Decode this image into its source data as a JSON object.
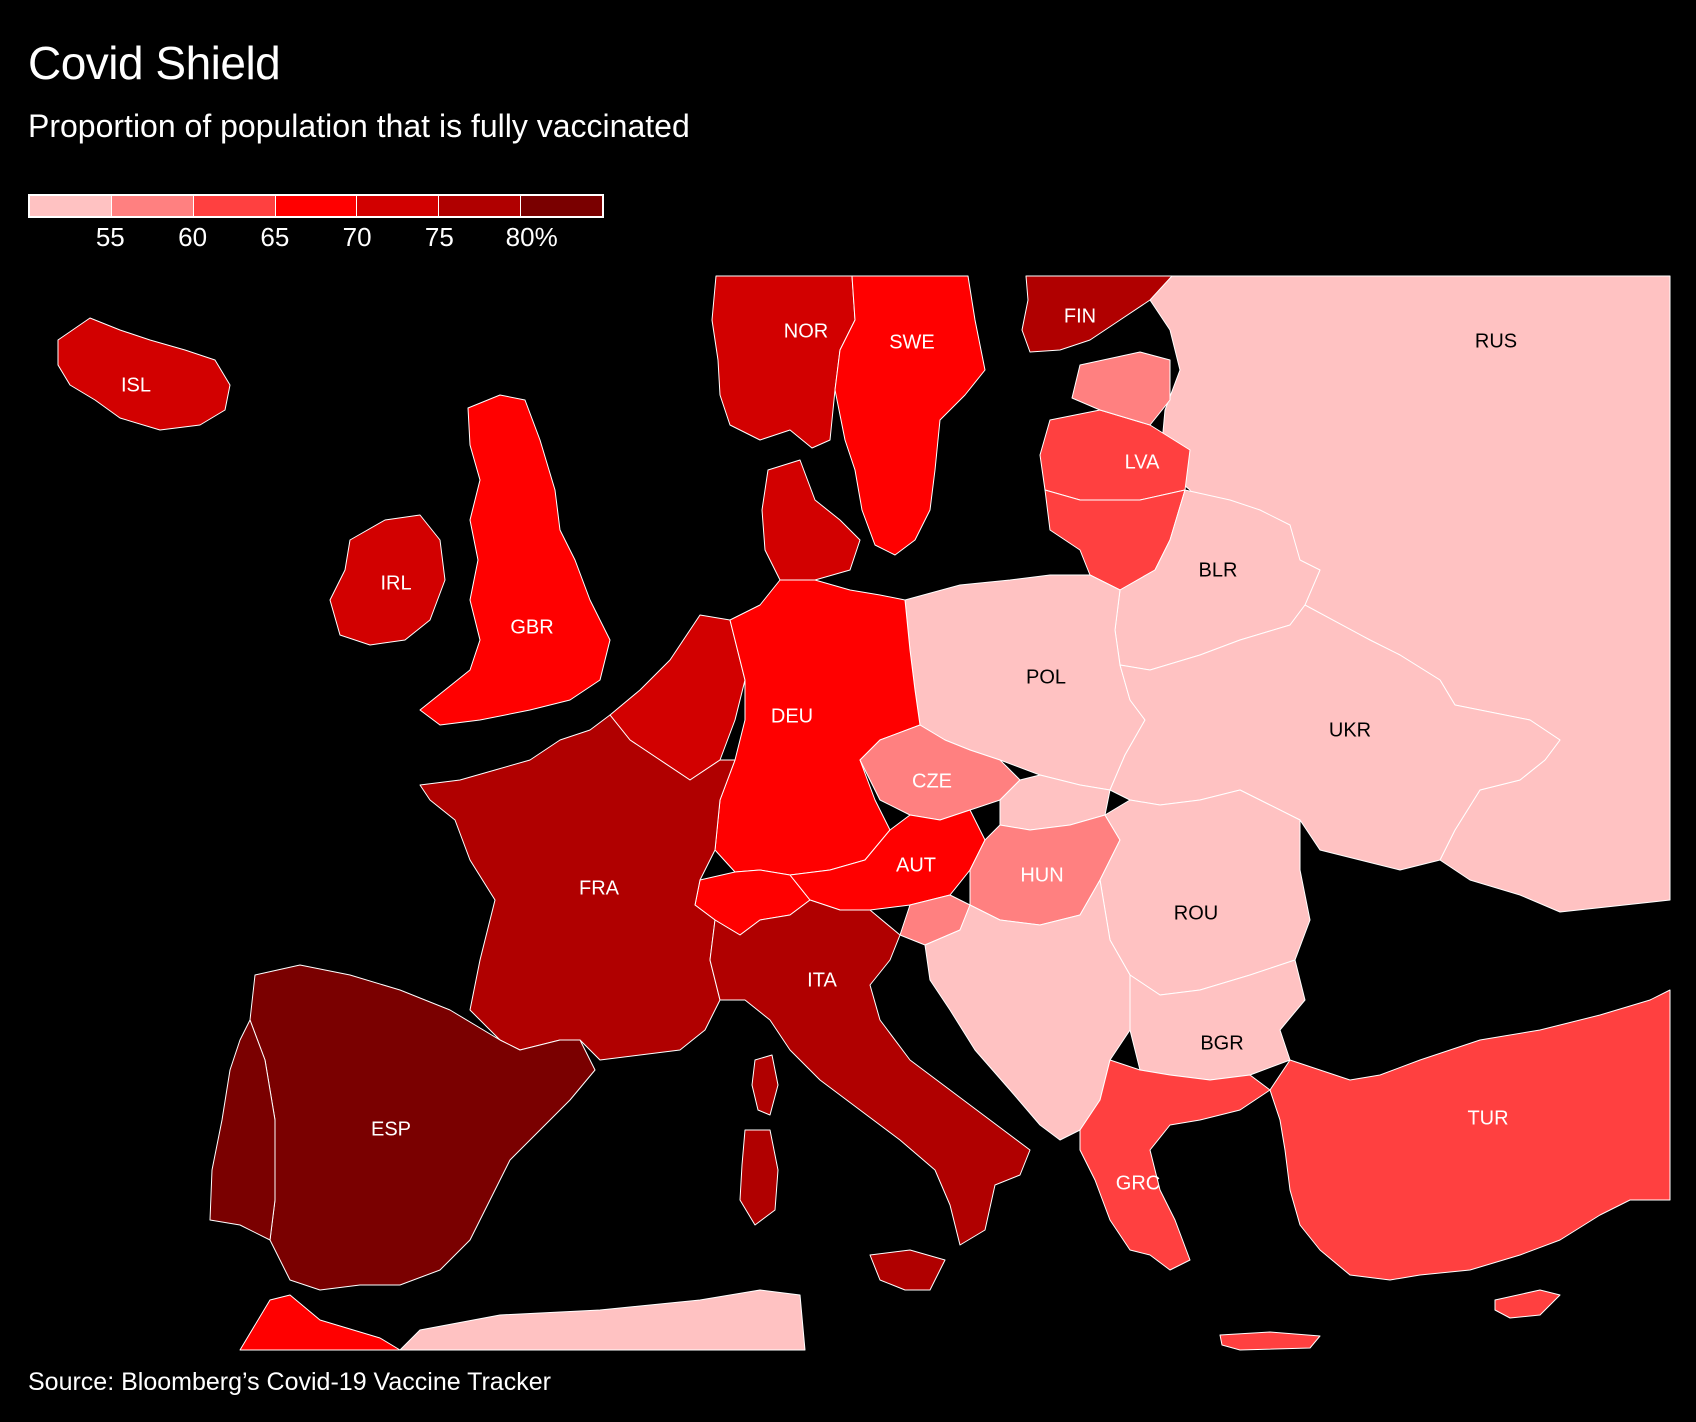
{
  "title": "Covid Shield",
  "subtitle": "Proportion of population that is fully vaccinated",
  "legend": {
    "colors": [
      "#ffc2c2",
      "#ff8080",
      "#ff4040",
      "#ff0000",
      "#d20000",
      "#b00000",
      "#7a0000"
    ],
    "labels": [
      "55",
      "60",
      "65",
      "70",
      "75",
      "80%"
    ]
  },
  "source": "Source: Bloomberg’s Covid-19 Vaccine Tracker",
  "countries": {
    "ISL": {
      "label": "ISL",
      "bin": 4
    },
    "NOR": {
      "label": "NOR",
      "bin": 4
    },
    "SWE": {
      "label": "SWE",
      "bin": 3
    },
    "FIN": {
      "label": "FIN",
      "bin": 5
    },
    "RUS": {
      "label": "RUS",
      "bin": 0
    },
    "LVA": {
      "label": "LVA",
      "bin": 2
    },
    "IRL": {
      "label": "IRL",
      "bin": 4
    },
    "GBR": {
      "label": "GBR",
      "bin": 3
    },
    "BLR": {
      "label": "BLR",
      "bin": 0
    },
    "POL": {
      "label": "POL",
      "bin": 0
    },
    "DEU": {
      "label": "DEU",
      "bin": 3
    },
    "UKR": {
      "label": "UKR",
      "bin": 0
    },
    "CZE": {
      "label": "CZE",
      "bin": 1
    },
    "AUT": {
      "label": "AUT",
      "bin": 3
    },
    "HUN": {
      "label": "HUN",
      "bin": 1
    },
    "FRA": {
      "label": "FRA",
      "bin": 5
    },
    "ROU": {
      "label": "ROU",
      "bin": 0
    },
    "ITA": {
      "label": "ITA",
      "bin": 5
    },
    "BGR": {
      "label": "BGR",
      "bin": 0
    },
    "ESP": {
      "label": "ESP",
      "bin": 6
    },
    "TUR": {
      "label": "TUR",
      "bin": 2
    },
    "GRC": {
      "label": "GRC",
      "bin": 2
    }
  }
}
